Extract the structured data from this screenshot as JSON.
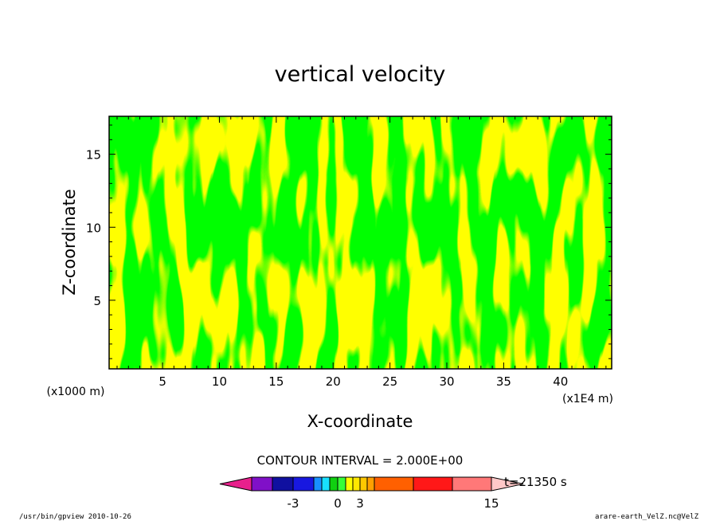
{
  "chart_data": {
    "type": "heatmap",
    "title": "vertical velocity",
    "xlabel": "X-coordinate",
    "ylabel": "Z-coordinate",
    "x_unit_label": "(x1E4 m)",
    "y_unit_label": "(x1000 m)",
    "xlim": [
      0.3,
      44.5
    ],
    "ylim": [
      0.3,
      17.6
    ],
    "x_ticks": [
      5,
      10,
      15,
      20,
      25,
      30,
      35,
      40
    ],
    "y_ticks": [
      5,
      10,
      15
    ],
    "grid": false,
    "contour_interval_label": "CONTOUR INTERVAL = 2.000E+00",
    "time_label": "t=21350 s",
    "colorbar": {
      "colors": [
        "#e8208c",
        "#8010c8",
        "#1010a0",
        "#1818e0",
        "#1890ff",
        "#18e0ff",
        "#10d010",
        "#38ff38",
        "#ffff00",
        "#ffe800",
        "#ffc800",
        "#ffa000",
        "#ff6000",
        "#ff1818",
        "#ff7878",
        "#ffc8c8"
      ],
      "tick_labels": [
        "-3",
        "0",
        "3",
        "15"
      ]
    },
    "colors": {
      "positive": "#ffff00",
      "negative": "#00ff00",
      "frame": "#000000"
    }
  },
  "footer": {
    "left": "/usr/bin/gpview   2010-10-26",
    "right": "arare-earth_VelZ.nc@VelZ"
  }
}
